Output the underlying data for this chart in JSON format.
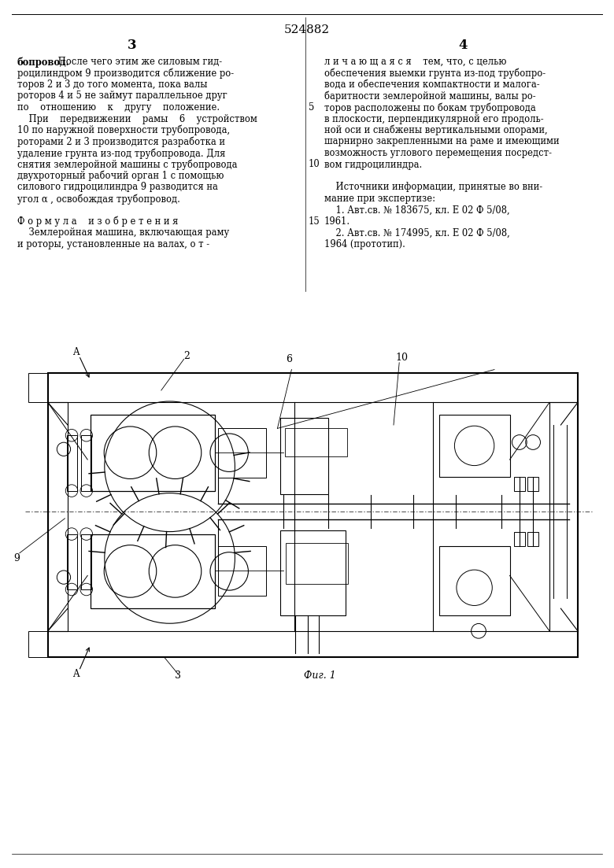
{
  "bg_color": "#ffffff",
  "page_number_top": "524882",
  "col_left_num": "3",
  "col_right_num": "4",
  "text_left": [
    [
      "бопровод.",
      " После чего этим же силовым гид-"
    ],
    [
      null,
      "роцилиндром 9 производится сближение ро-"
    ],
    [
      null,
      "торов 2 и 3 до того момента, пока валы"
    ],
    [
      null,
      "роторов 4 и 5 не займут параллельное друг"
    ],
    [
      null,
      "по    отношению    к    другу    положение."
    ],
    [
      null,
      "    При    передвижении    рамы    6    устройством"
    ],
    [
      null,
      "10 по наружной поверхности трубопровода,"
    ],
    [
      null,
      "роторами 2 и 3 производится разработка и"
    ],
    [
      null,
      "удаление грунта из-под трубопровода. Для"
    ],
    [
      null,
      "снятия землеройной машины с трубопровода"
    ],
    [
      null,
      "двухроторный рабочий орган 1 с помощью"
    ],
    [
      null,
      "силового гидроцилиндра 9 разводится на"
    ],
    [
      null,
      "угол α , освобождая трубопровод."
    ],
    [
      null,
      ""
    ],
    [
      null,
      "Ф о р м у л а    и з о б р е т е н и я"
    ],
    [
      null,
      "    Землеройная машина, включающая раму"
    ],
    [
      null,
      "и роторы, установленные на валах, о т -"
    ]
  ],
  "text_right": [
    [
      null,
      "л и ч а ю щ а я с я    тем, что, с целью"
    ],
    [
      null,
      "обеспечения выемки грунта из-под трубопро-"
    ],
    [
      null,
      "вода и обеспечения компактности и малога-"
    ],
    [
      null,
      "баритности землеройной машины, валы ро-"
    ],
    [
      "5",
      "торов расположены по бокам трубопровода"
    ],
    [
      null,
      "в плоскости, перпендикулярной его продоль-"
    ],
    [
      null,
      "ной оси и снабжены вертикальными опорами,"
    ],
    [
      null,
      "шарнирно закрепленными на раме и имеющими"
    ],
    [
      null,
      "возможность углового перемещения посредст-"
    ],
    [
      "10",
      "вом гидроцилиндра."
    ],
    [
      null,
      ""
    ],
    [
      null,
      "    Источники информации, принятые во вни-"
    ],
    [
      null,
      "мание при экспертизе:"
    ],
    [
      null,
      "    1. Авт.св. № 183675, кл. Е 02 Ф 5/08,"
    ],
    [
      "15",
      "1961."
    ],
    [
      null,
      "    2. Авт.св. № 174995, кл. Е 02 Ф 5/08,"
    ],
    [
      null,
      "1964 (прототип)."
    ]
  ],
  "fig_caption": "Фиг. 1"
}
